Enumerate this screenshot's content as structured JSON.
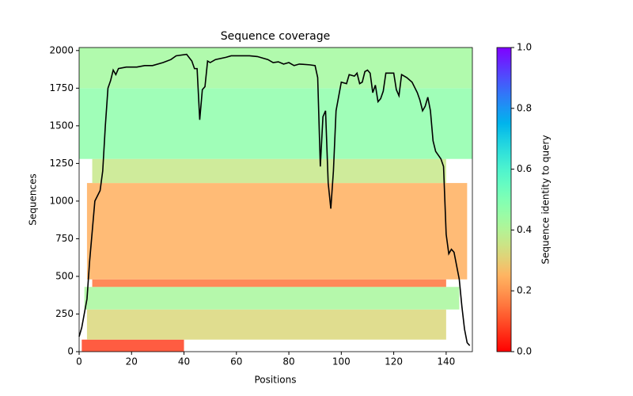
{
  "chart_data": {
    "type": "line",
    "title": "Sequence coverage",
    "x_label": "Positions",
    "y_label": "Sequences",
    "xlim": [
      0,
      150
    ],
    "ylim": [
      0,
      2020
    ],
    "xticks": [
      0,
      20,
      40,
      60,
      80,
      100,
      120,
      140
    ],
    "yticks": [
      0,
      250,
      500,
      750,
      1000,
      1250,
      1500,
      1750,
      2000
    ],
    "series": [
      {
        "color": "#000000",
        "x": [
          0,
          1,
          3,
          4,
          5,
          6,
          8,
          9,
          10,
          11,
          12,
          13,
          14,
          15,
          18,
          22,
          25,
          28,
          32,
          35,
          37,
          41,
          43,
          44,
          45,
          46,
          47,
          48,
          49,
          50,
          52,
          56,
          58,
          62,
          65,
          68,
          72,
          74,
          76,
          78,
          80,
          82,
          84,
          88,
          90,
          91,
          92,
          93,
          94,
          95,
          96,
          97,
          98,
          100,
          102,
          103,
          105,
          106,
          107,
          108,
          109,
          110,
          111,
          112,
          113,
          114,
          115,
          116,
          117,
          120,
          121,
          122,
          123,
          125,
          127,
          129,
          130,
          131,
          132,
          133,
          134,
          135,
          136,
          138,
          139,
          140,
          141,
          142,
          143,
          145,
          146,
          147,
          148,
          149
        ],
        "values": [
          100,
          160,
          350,
          600,
          800,
          1000,
          1070,
          1200,
          1500,
          1750,
          1800,
          1870,
          1840,
          1880,
          1890,
          1890,
          1900,
          1900,
          1920,
          1940,
          1965,
          1975,
          1930,
          1880,
          1880,
          1540,
          1740,
          1760,
          1930,
          1920,
          1940,
          1955,
          1965,
          1965,
          1965,
          1960,
          1940,
          1920,
          1925,
          1910,
          1920,
          1900,
          1910,
          1905,
          1900,
          1820,
          1230,
          1560,
          1600,
          1120,
          950,
          1200,
          1600,
          1790,
          1780,
          1840,
          1830,
          1850,
          1780,
          1790,
          1860,
          1870,
          1850,
          1720,
          1770,
          1660,
          1680,
          1730,
          1850,
          1850,
          1740,
          1700,
          1840,
          1820,
          1790,
          1720,
          1670,
          1600,
          1630,
          1690,
          1600,
          1400,
          1330,
          1280,
          1230,
          780,
          650,
          680,
          660,
          480,
          300,
          150,
          60,
          40
        ]
      }
    ],
    "heatmap": {
      "x0": [
        1,
        3,
        2,
        5,
        3,
        5,
        0,
        0
      ],
      "x1": [
        40,
        140,
        145,
        140,
        148,
        140,
        150,
        150
      ],
      "y0": [
        0,
        80,
        280,
        430,
        480,
        1120,
        1280,
        1750
      ],
      "y1": [
        80,
        280,
        430,
        480,
        1120,
        1280,
        1750,
        2020
      ],
      "identity": [
        0.08,
        0.32,
        0.42,
        0.15,
        0.24,
        0.36,
        0.47,
        0.43
      ]
    },
    "colorbar": {
      "label": "Sequence identity to query",
      "lim": [
        0,
        1
      ],
      "ticks": [
        {
          "value": 0,
          "label": "0.0"
        },
        {
          "value": 0.2,
          "label": "0.2"
        },
        {
          "value": 0.4,
          "label": "0.4"
        },
        {
          "value": 0.6,
          "label": "0.6"
        },
        {
          "value": 0.8,
          "label": "0.8"
        },
        {
          "value": 1,
          "label": "1.0"
        }
      ]
    }
  }
}
